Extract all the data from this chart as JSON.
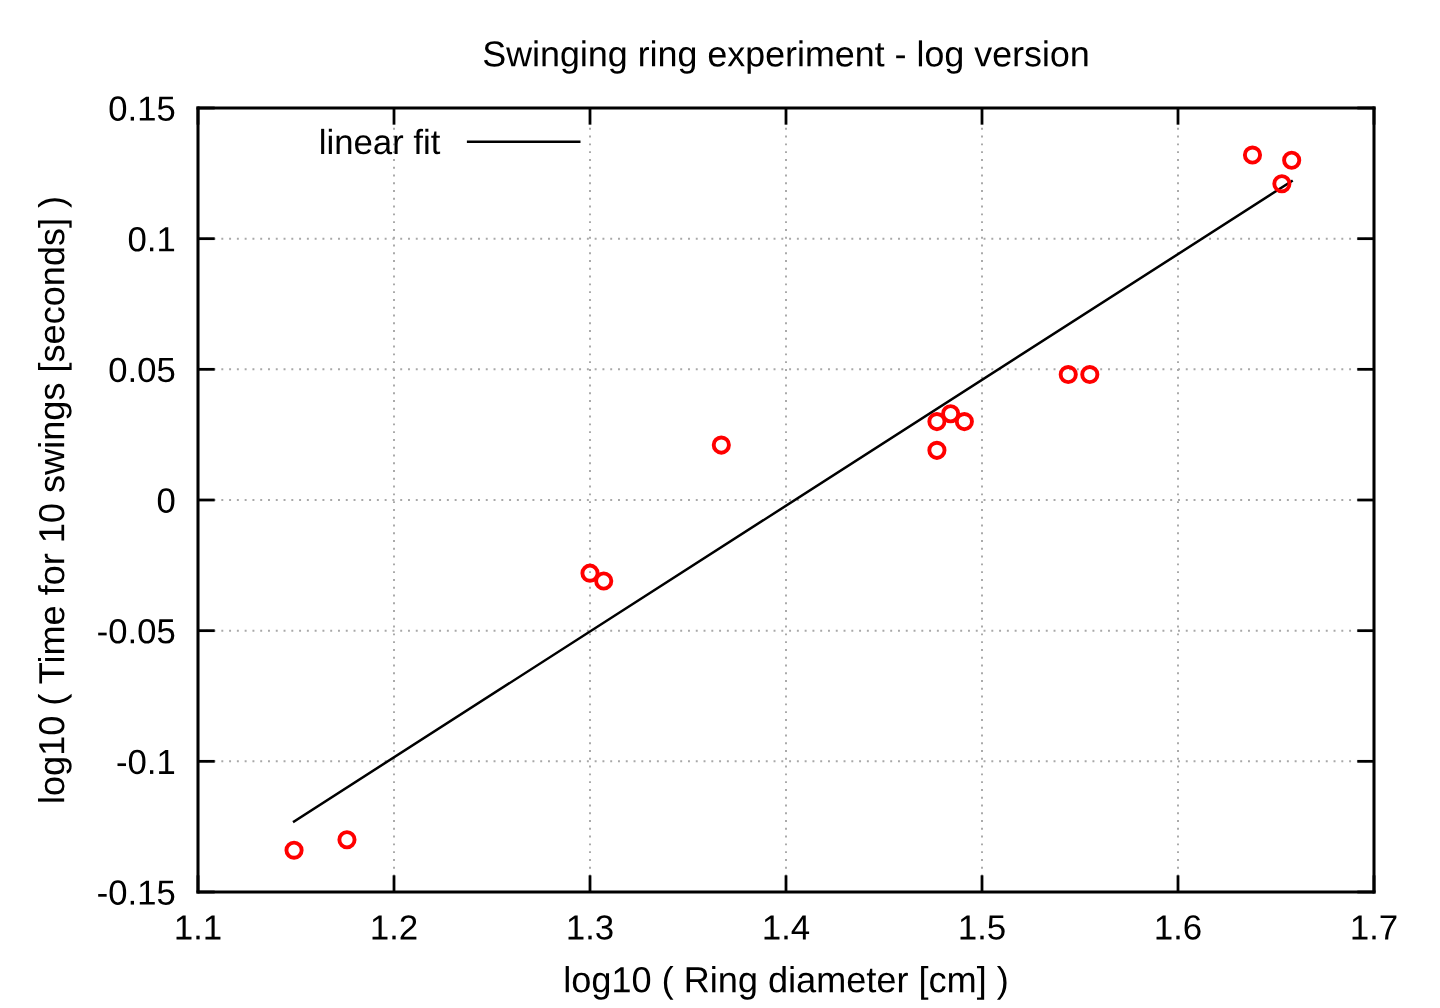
{
  "chart_data": {
    "type": "scatter",
    "title": "Swinging ring experiment - log version",
    "xlabel": "log10 ( Ring diameter [cm] )",
    "ylabel": "log10 ( Time for 10 swings [seconds] )",
    "xlim": [
      1.1,
      1.7
    ],
    "xticks": [
      1.1,
      1.2,
      1.3,
      1.4,
      1.5,
      1.6,
      1.7
    ],
    "ylim": [
      -0.15,
      0.15
    ],
    "yticks": [
      -0.15,
      -0.1,
      -0.05,
      0,
      0.05,
      0.1,
      0.15
    ],
    "grid": true,
    "legend": "top left",
    "series": [
      {
        "color": "#ff0000",
        "marker": "circle",
        "x": [
          1.149,
          1.176,
          1.3,
          1.307,
          1.367,
          1.477,
          1.477,
          1.484,
          1.491,
          1.544,
          1.555,
          1.638,
          1.653,
          1.658
        ],
        "values": [
          -0.134,
          -0.13,
          -0.028,
          -0.031,
          0.021,
          0.03,
          0.019,
          0.033,
          0.03,
          0.048,
          0.048,
          0.132,
          0.121,
          0.13
        ]
      },
      {
        "type": "line",
        "name": "linear fit",
        "color": "#000000",
        "marker": "none",
        "line_style": "solid",
        "x": [
          1.149,
          1.658
        ],
        "values": [
          -0.123,
          0.122
        ]
      }
    ]
  }
}
